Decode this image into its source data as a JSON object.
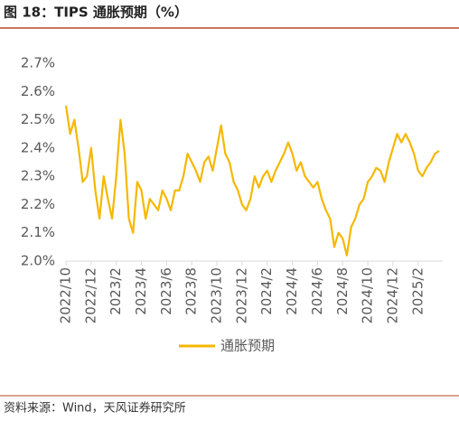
{
  "chart_data": {
    "type": "line",
    "title": "图 18：TIPS 通胀预期（%）",
    "source": "资料来源：Wind，天风证券研究所",
    "categories": [
      "2022/10",
      null,
      null,
      null,
      null,
      null,
      "2022/12",
      null,
      null,
      null,
      null,
      null,
      "2023/2",
      null,
      null,
      null,
      null,
      null,
      "2023/4",
      null,
      null,
      null,
      null,
      null,
      "2023/6",
      null,
      null,
      null,
      null,
      null,
      "2023/8",
      null,
      null,
      null,
      null,
      null,
      "2023/10",
      null,
      null,
      null,
      null,
      null,
      "2023/12",
      null,
      null,
      null,
      null,
      null,
      "2024/2",
      null,
      null,
      null,
      null,
      null,
      "2024/4",
      null,
      null,
      null,
      null,
      null,
      "2024/6",
      null,
      null,
      null,
      null,
      null,
      "2024/8",
      null,
      null,
      null,
      null,
      null,
      "2024/10",
      null,
      null,
      null,
      null,
      null,
      "2024/12",
      null,
      null,
      null,
      null,
      null,
      "2025/2",
      null,
      null,
      null,
      null,
      null
    ],
    "series": [
      {
        "name": "通胀预期",
        "color": "#f5b800",
        "values": [
          2.55,
          2.45,
          2.5,
          2.4,
          2.28,
          2.3,
          2.4,
          2.25,
          2.15,
          2.3,
          2.22,
          2.15,
          2.3,
          2.5,
          2.38,
          2.15,
          2.1,
          2.28,
          2.25,
          2.15,
          2.22,
          2.2,
          2.18,
          2.25,
          2.22,
          2.18,
          2.25,
          2.25,
          2.3,
          2.38,
          2.35,
          2.32,
          2.28,
          2.35,
          2.37,
          2.32,
          2.4,
          2.48,
          2.38,
          2.35,
          2.28,
          2.25,
          2.2,
          2.18,
          2.22,
          2.3,
          2.26,
          2.3,
          2.32,
          2.28,
          2.32,
          2.35,
          2.38,
          2.42,
          2.38,
          2.32,
          2.35,
          2.3,
          2.28,
          2.26,
          2.28,
          2.22,
          2.18,
          2.15,
          2.05,
          2.1,
          2.08,
          2.02,
          2.12,
          2.15,
          2.2,
          2.22,
          2.28,
          2.3,
          2.33,
          2.32,
          2.28,
          2.35,
          2.4,
          2.45,
          2.42,
          2.45,
          2.42,
          2.38,
          2.32,
          2.3,
          2.33,
          2.35,
          2.38,
          2.39
        ]
      }
    ],
    "ylim": [
      2.0,
      2.7
    ],
    "yticks": [
      {
        "value": 2.0,
        "label": "2.0%"
      },
      {
        "value": 2.1,
        "label": "2.1%"
      },
      {
        "value": 2.2,
        "label": "2.2%"
      },
      {
        "value": 2.3,
        "label": "2.3%"
      },
      {
        "value": 2.4,
        "label": "2.4%"
      },
      {
        "value": 2.5,
        "label": "2.5%"
      },
      {
        "value": 2.6,
        "label": "2.6%"
      },
      {
        "value": 2.7,
        "label": "2.7%"
      }
    ],
    "grid": false
  }
}
